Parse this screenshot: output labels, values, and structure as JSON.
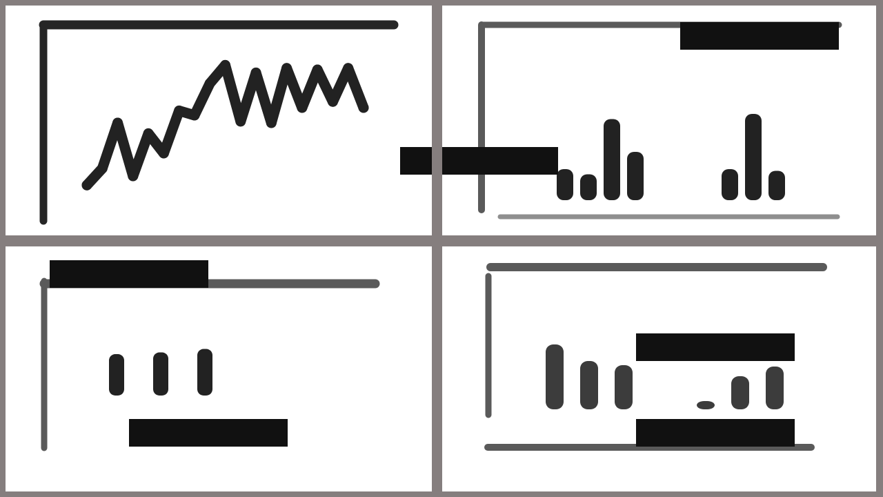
{
  "colors": {
    "ink": "#222222",
    "axis_dark": "#262626",
    "axis_mid": "#5a5a5a",
    "axis_light": "#8f8f8f",
    "redaction": "#111111",
    "frame": "#857e7e",
    "panel": "#ffffff"
  },
  "chart_data": [
    {
      "type": "line",
      "x": [
        1,
        2,
        3,
        4,
        5,
        6,
        7,
        8,
        9,
        10,
        11,
        12,
        13,
        14,
        15,
        16,
        17,
        18,
        19
      ],
      "values": [
        9,
        20,
        50,
        15,
        43,
        30,
        58,
        55,
        76,
        88,
        51,
        83,
        50,
        86,
        60,
        85,
        64,
        86,
        60
      ],
      "ylim": [
        0,
        100
      ],
      "grid": false,
      "legend": "none"
    },
    {
      "type": "bar",
      "groups": [
        [
          18,
          15,
          47,
          28
        ],
        [
          18,
          50,
          17
        ]
      ],
      "ylim": [
        0,
        60
      ],
      "grid": false,
      "legend": "top-right"
    },
    {
      "type": "bar",
      "values": [
        24,
        25,
        27
      ],
      "ylim": [
        0,
        60
      ],
      "grid": false,
      "legend": "none"
    },
    {
      "type": "bar",
      "groups": [
        [
          47,
          35,
          32
        ],
        [
          6,
          24,
          31
        ]
      ],
      "ylim": [
        0,
        60
      ],
      "grid": false,
      "legend": "top-right"
    }
  ]
}
